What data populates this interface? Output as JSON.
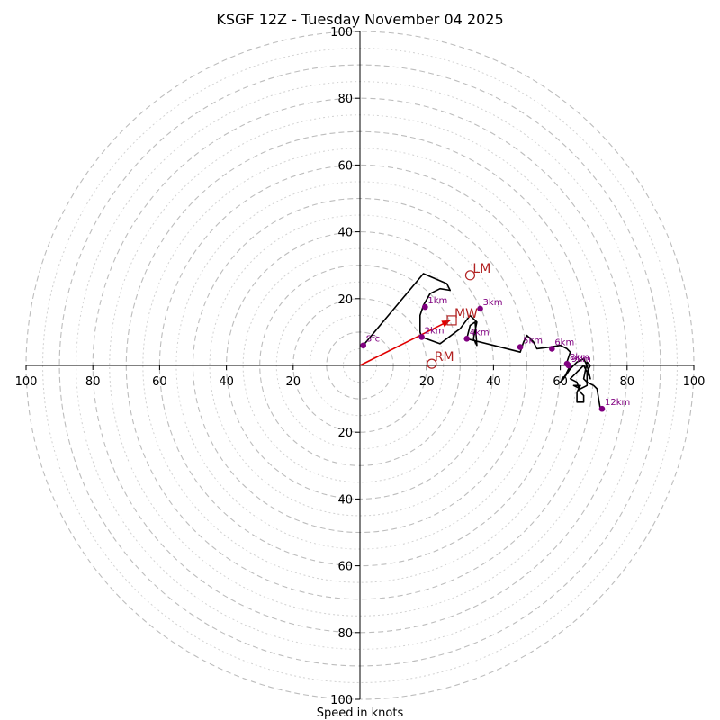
{
  "chart_data": {
    "type": "hodograph",
    "title": "KSGF 12Z - Tuesday November 04 2025",
    "xlabel": "Speed in knots",
    "units": "knots",
    "max_speed": 100,
    "major_ring_speeds": [
      10,
      20,
      30,
      40,
      50,
      60,
      70,
      80,
      90,
      100
    ],
    "minor_ring_speeds": [
      5,
      15,
      25,
      35,
      45,
      55,
      65,
      75,
      85,
      95
    ],
    "ticks": {
      "left": [
        "100",
        "80",
        "60",
        "40",
        "20"
      ],
      "right": [
        "20",
        "40",
        "60",
        "80",
        "100"
      ],
      "top": [
        "100",
        "80",
        "60",
        "40",
        "20"
      ],
      "bottom": [
        "20",
        "40",
        "60",
        "80",
        "100"
      ]
    },
    "tick_values": [
      20,
      40,
      60,
      80,
      100
    ],
    "hodograph_trace": [
      [
        1,
        6
      ],
      [
        19,
        27.5
      ],
      [
        26,
        24.5
      ],
      [
        27,
        22.5
      ],
      [
        24,
        23
      ],
      [
        21,
        21.5
      ],
      [
        19,
        18
      ],
      [
        18,
        15
      ],
      [
        18,
        10
      ],
      [
        18.5,
        8.5
      ],
      [
        24,
        6.5
      ],
      [
        30,
        11
      ],
      [
        33,
        15
      ],
      [
        35,
        13
      ],
      [
        34,
        8
      ],
      [
        35,
        6
      ],
      [
        34.5,
        13
      ],
      [
        33,
        12
      ],
      [
        32,
        8
      ],
      [
        40,
        6
      ],
      [
        48,
        4
      ],
      [
        49,
        7
      ],
      [
        50,
        9
      ],
      [
        52,
        7
      ],
      [
        53,
        5
      ],
      [
        57,
        5.5
      ],
      [
        60,
        6
      ],
      [
        62,
        5
      ],
      [
        63,
        4
      ],
      [
        62,
        1
      ],
      [
        63,
        0
      ],
      [
        61.5,
        -3
      ],
      [
        60,
        -5
      ],
      [
        61,
        -4
      ],
      [
        63,
        -1
      ],
      [
        65,
        1
      ],
      [
        67,
        2
      ],
      [
        68,
        0
      ],
      [
        69,
        -4
      ],
      [
        68,
        -2
      ],
      [
        67,
        0
      ],
      [
        65,
        -2
      ],
      [
        63,
        -4
      ],
      [
        65,
        -5
      ],
      [
        66,
        -8
      ],
      [
        67,
        -9
      ],
      [
        67,
        -11
      ],
      [
        65,
        -11
      ],
      [
        65,
        -8
      ],
      [
        66,
        -6
      ],
      [
        64,
        -6
      ],
      [
        66,
        -7
      ],
      [
        68,
        -6
      ],
      [
        68,
        -2
      ],
      [
        69,
        0
      ],
      [
        68,
        1
      ],
      [
        67,
        -4
      ],
      [
        68,
        -5
      ],
      [
        70,
        -6
      ],
      [
        71,
        -7
      ],
      [
        72,
        -13
      ]
    ],
    "height_markers": [
      {
        "label": "Sfc",
        "u": 1,
        "v": 6
      },
      {
        "label": "1km",
        "u": 19.5,
        "v": 17.5
      },
      {
        "label": "2km",
        "u": 18.5,
        "v": 8.5
      },
      {
        "label": "3km",
        "u": 36,
        "v": 17
      },
      {
        "label": "4km",
        "u": 32,
        "v": 8
      },
      {
        "label": "5km",
        "u": 48,
        "v": 5.5
      },
      {
        "label": "6km",
        "u": 57.5,
        "v": 5
      },
      {
        "label": "8km",
        "u": 62,
        "v": 0.5
      },
      {
        "label": "9km",
        "u": 62.5,
        "v": 0
      },
      {
        "label": "12km",
        "u": 72.5,
        "v": -13
      }
    ],
    "storm_motion": [
      {
        "label": "LM",
        "u": 33,
        "v": 27,
        "marker": "circle"
      },
      {
        "label": "MW",
        "u": 27.5,
        "v": 13.5,
        "marker": "square"
      },
      {
        "label": "RM",
        "u": 21.5,
        "v": 0.5,
        "marker": "circle"
      }
    ],
    "mean_wind_vector": {
      "from": [
        0,
        0
      ],
      "to": [
        27,
        13.5
      ]
    },
    "colors": {
      "trace": "#000000",
      "height_markers": "#800080",
      "storm_motion": "#b22222",
      "mean_wind_arrow": "#e00000",
      "rings": "#bdbdbd"
    }
  }
}
